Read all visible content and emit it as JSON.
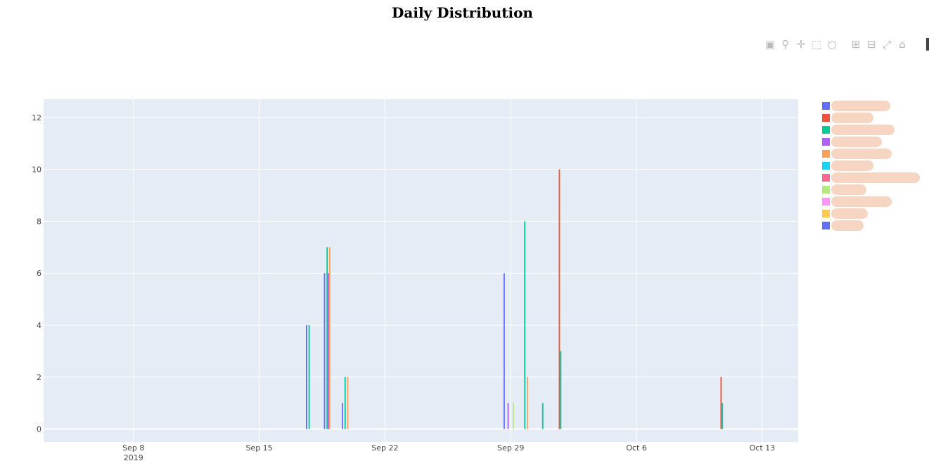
{
  "title": "Daily Distribution",
  "modebar": {
    "buttons": [
      {
        "name": "camera-icon",
        "glyph": "▣"
      },
      {
        "name": "zoom-icon",
        "glyph": "⚲"
      },
      {
        "name": "pan-icon",
        "glyph": "✛"
      },
      {
        "name": "box-select-icon",
        "glyph": "⬚"
      },
      {
        "name": "lasso-select-icon",
        "glyph": "○"
      },
      {
        "name": "zoom-in-icon",
        "glyph": "⊞"
      },
      {
        "name": "zoom-out-icon",
        "glyph": "⊟"
      },
      {
        "name": "autoscale-icon",
        "glyph": "⤢"
      },
      {
        "name": "reset-axes-icon",
        "glyph": "⌂"
      },
      {
        "name": "plotly-logo-icon",
        "glyph": "▐"
      }
    ]
  },
  "legend": {
    "items": [
      {
        "color": "#636efa",
        "label": ""
      },
      {
        "color": "#EF553B",
        "label": ""
      },
      {
        "color": "#00cc96",
        "label": ""
      },
      {
        "color": "#ab63fa",
        "label": ""
      },
      {
        "color": "#FFA15A",
        "label": ""
      },
      {
        "color": "#19d3f3",
        "label": ""
      },
      {
        "color": "#FF6692",
        "label": ""
      },
      {
        "color": "#B6E880",
        "label": ""
      },
      {
        "color": "#FF97FF",
        "label": ""
      },
      {
        "color": "#FECB52",
        "label": ""
      },
      {
        "color": "#636efa",
        "label": ""
      }
    ]
  },
  "chart_data": {
    "type": "bar",
    "title": "Daily Distribution",
    "xlabel": "",
    "ylabel": "",
    "x_axis_type": "date",
    "xlim": [
      "2019-09-03",
      "2019-10-15"
    ],
    "ylim": [
      -0.5,
      12.7
    ],
    "x_ticks": [
      {
        "date": "2019-09-08",
        "label": "Sep 8",
        "sublabel": "2019"
      },
      {
        "date": "2019-09-15",
        "label": "Sep 15",
        "sublabel": ""
      },
      {
        "date": "2019-09-22",
        "label": "Sep 22",
        "sublabel": ""
      },
      {
        "date": "2019-09-29",
        "label": "Sep 29",
        "sublabel": ""
      },
      {
        "date": "2019-10-06",
        "label": "Oct 6",
        "sublabel": ""
      },
      {
        "date": "2019-10-13",
        "label": "Oct 13",
        "sublabel": ""
      }
    ],
    "y_ticks": [
      0,
      2,
      4,
      6,
      8,
      10,
      12
    ],
    "grid": true,
    "legend_position": "right",
    "plot_background": "#e5ecf6",
    "series": [
      {
        "color": "#636efa",
        "points": [
          {
            "x": "2019-09-18",
            "y": 4
          },
          {
            "x": "2019-09-19",
            "y": 6
          },
          {
            "x": "2019-09-20",
            "y": 1
          },
          {
            "x": "2019-09-29",
            "y": 6
          }
        ]
      },
      {
        "color": "#EF553B",
        "points": [
          {
            "x": "2019-10-02",
            "y": 10
          },
          {
            "x": "2019-10-11",
            "y": 2
          }
        ]
      },
      {
        "color": "#00cc96",
        "points": [
          {
            "x": "2019-09-18",
            "y": 4
          },
          {
            "x": "2019-09-19",
            "y": 7
          },
          {
            "x": "2019-09-20",
            "y": 2
          },
          {
            "x": "2019-09-30",
            "y": 8
          },
          {
            "x": "2019-10-01",
            "y": 1
          },
          {
            "x": "2019-10-02",
            "y": 3
          },
          {
            "x": "2019-10-11",
            "y": 1
          }
        ]
      },
      {
        "color": "#ab63fa",
        "points": [
          {
            "x": "2019-09-19",
            "y": 6
          },
          {
            "x": "2019-09-29",
            "y": 1
          }
        ]
      },
      {
        "color": "#FFA15A",
        "points": [
          {
            "x": "2019-09-19",
            "y": 7
          },
          {
            "x": "2019-09-20",
            "y": 2
          },
          {
            "x": "2019-09-30",
            "y": 2
          }
        ]
      },
      {
        "color": "#19d3f3",
        "points": []
      },
      {
        "color": "#FF6692",
        "points": []
      },
      {
        "color": "#B6E880",
        "points": [
          {
            "x": "2019-09-29",
            "y": 1
          }
        ]
      },
      {
        "color": "#FF97FF",
        "points": []
      },
      {
        "color": "#FECB52",
        "points": []
      },
      {
        "color": "#636efa",
        "points": []
      }
    ]
  }
}
